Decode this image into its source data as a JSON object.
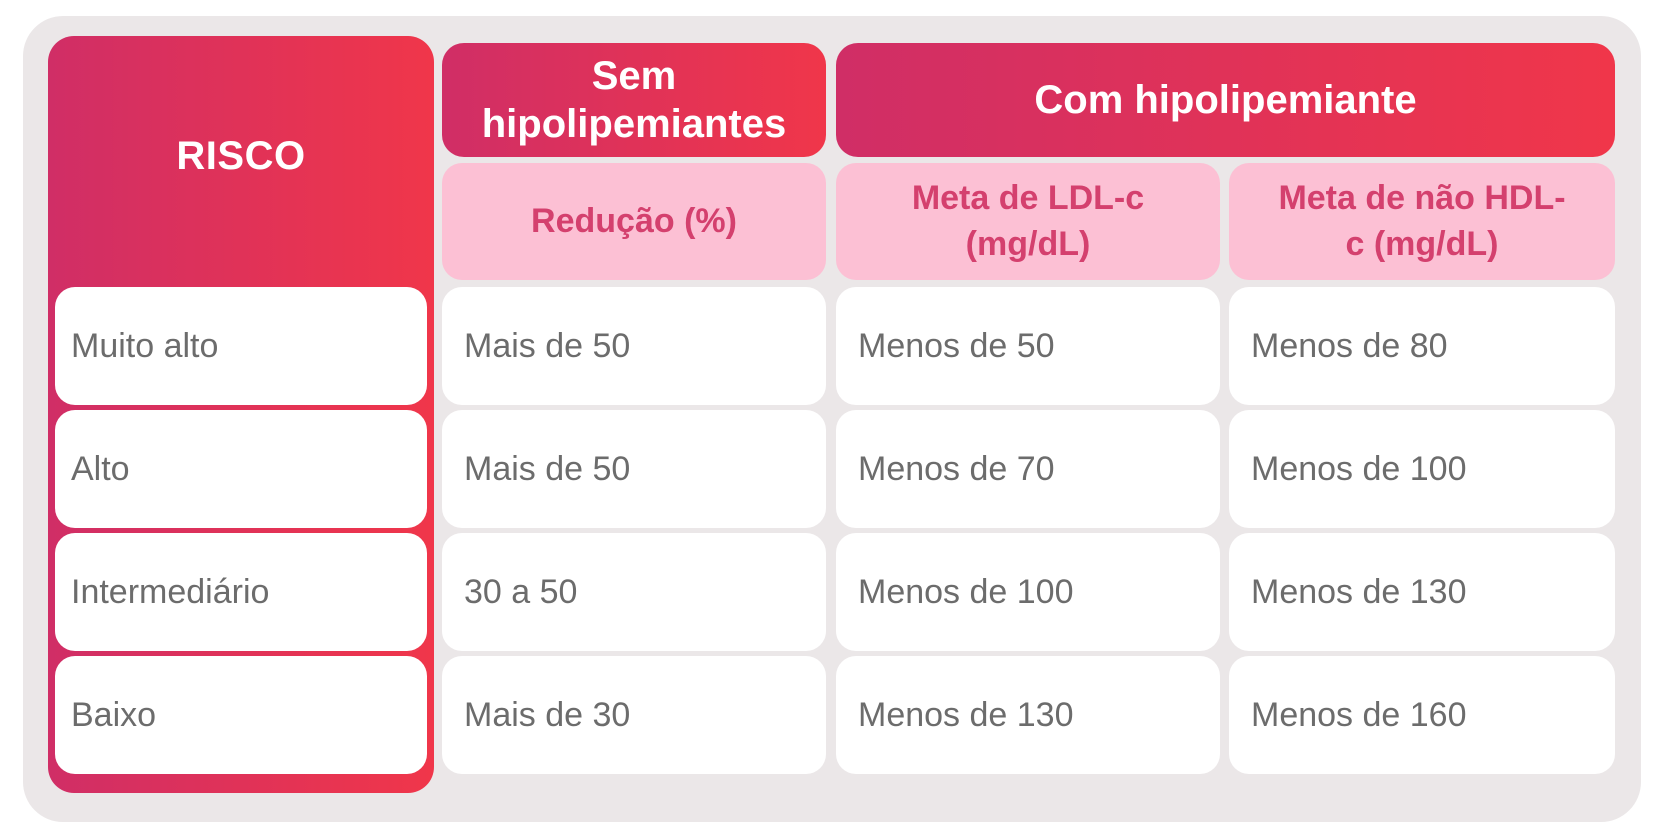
{
  "table": {
    "risk_header": "RISCO",
    "group_headers": {
      "without": "Sem hipolipemiantes",
      "with": "Com hipolipemiante"
    },
    "sub_headers": {
      "reduction": "Redução (%)",
      "ldl_target": "Meta de LDL-c (mg/dL)",
      "non_hdl_target": "Meta de não HDL-c (mg/dL)"
    },
    "rows": [
      {
        "risk": "Muito alto",
        "reduction": "Mais de 50",
        "ldl": "Menos de 50",
        "non_hdl": "Menos de 80"
      },
      {
        "risk": "Alto",
        "reduction": "Mais de 50",
        "ldl": "Menos de 70",
        "non_hdl": "Menos de 100"
      },
      {
        "risk": "Intermediário",
        "reduction": "30 a 50",
        "ldl": "Menos de 100",
        "non_hdl": "Menos de 130"
      },
      {
        "risk": "Baixo",
        "reduction": "Mais de 30",
        "ldl": "Menos de 130",
        "non_hdl": "Menos de 160"
      }
    ]
  },
  "colors": {
    "gradient_start": "#d02e66",
    "gradient_end": "#f0364a",
    "subheader_bg": "#fcc0d4",
    "subheader_text": "#d4406e",
    "panel_bg": "#ebe7e8",
    "cell_text": "#6c6c6c"
  }
}
